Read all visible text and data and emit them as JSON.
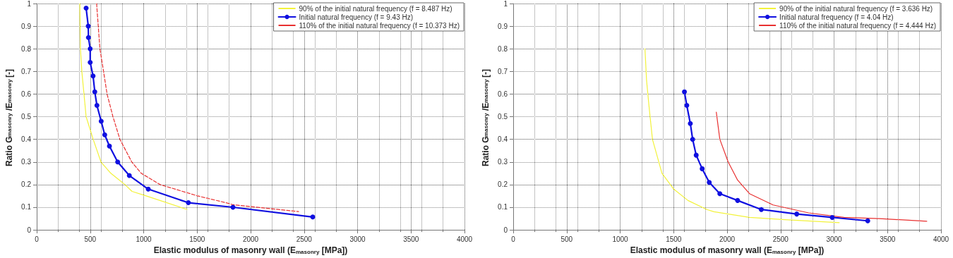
{
  "chart_data": [
    {
      "type": "line",
      "xlabel": "Elastic modulus of masonry wall (E$_{masonry}$ [MPa])",
      "ylabel": "Ratio G$_{masonry}$/E$_{masonry}$ [-]",
      "xlim": [
        0,
        4000
      ],
      "xticks": [
        0,
        500,
        1000,
        1500,
        2000,
        2500,
        3000,
        3500,
        4000
      ],
      "ylim": [
        0,
        1
      ],
      "yticks": [
        0,
        0.1,
        0.2,
        0.3,
        0.4,
        0.5,
        0.6,
        0.7,
        0.8,
        0.9,
        1
      ],
      "grid": true,
      "legend": "top right",
      "series": [
        {
          "name": "90% of the initial natural frequency (f = 8.487 Hz)",
          "color": "#f2f23a",
          "marker": "none",
          "line_style": "solid",
          "x": [
            403,
            409,
            422,
            462,
            528,
            601,
            693,
            825,
            891,
            1023,
            1406
          ],
          "values": [
            1.0,
            0.8,
            0.7,
            0.5,
            0.4,
            0.3,
            0.25,
            0.2,
            0.17,
            0.15,
            0.09
          ]
        },
        {
          "name": "Initial natural frequency (f = 9.43 Hz)",
          "color": "#1010e0",
          "marker": "circle",
          "line_style": "solid",
          "x": [
            462,
            482,
            484,
            500,
            500,
            527,
            543,
            563,
            603,
            636,
            680,
            757,
            866,
            1043,
            1418,
            1835,
            2581
          ],
          "values": [
            0.98,
            0.9,
            0.85,
            0.8,
            0.74,
            0.68,
            0.61,
            0.55,
            0.48,
            0.42,
            0.37,
            0.3,
            0.24,
            0.18,
            0.12,
            0.1,
            0.057
          ]
        },
        {
          "name": "110% of the initial natural frequency (f = 10.373 Hz)",
          "color": "#e83030",
          "marker": "none",
          "line_style": "dashed",
          "x": [
            560,
            591,
            625,
            658,
            713,
            778,
            889,
            977,
            1154,
            1505,
            1769,
            1835,
            2449
          ],
          "values": [
            1.0,
            0.8,
            0.7,
            0.6,
            0.5,
            0.4,
            0.3,
            0.25,
            0.2,
            0.15,
            0.12,
            0.111,
            0.081
          ]
        }
      ]
    },
    {
      "type": "line",
      "xlabel": "Elastic modulus of masonry wall (E$_{masonry}$ [MPa])",
      "ylabel": "Ratio G$_{masonry}$/E$_{masonry}$ [-]",
      "xlim": [
        0,
        4000
      ],
      "xticks": [
        0,
        500,
        1000,
        1500,
        2000,
        2500,
        3000,
        3500,
        4000
      ],
      "ylim": [
        0,
        1
      ],
      "yticks": [
        0,
        0.1,
        0.2,
        0.3,
        0.4,
        0.5,
        0.6,
        0.7,
        0.8,
        0.9,
        1
      ],
      "grid": true,
      "legend": "top right",
      "series": [
        {
          "name": "90% of the initial natural frequency (f = 3.636 Hz)",
          "color": "#f2f23a",
          "marker": "none",
          "line_style": "solid",
          "x": [
            1232,
            1247,
            1269,
            1302,
            1391,
            1501,
            1634,
            1811,
            1877,
            2209,
            2541,
            3049
          ],
          "values": [
            0.8,
            0.66,
            0.55,
            0.4,
            0.25,
            0.18,
            0.13,
            0.09,
            0.08,
            0.055,
            0.045,
            0.032
          ]
        },
        {
          "name": "Initial natural frequency (f = 4.04 Hz)",
          "color": "#1010e0",
          "marker": "circle",
          "line_style": "solid",
          "x": [
            1601,
            1623,
            1656,
            1678,
            1711,
            1767,
            1833,
            1932,
            2098,
            2320,
            2651,
            2983,
            3315
          ],
          "values": [
            0.61,
            0.55,
            0.47,
            0.4,
            0.33,
            0.27,
            0.21,
            0.16,
            0.13,
            0.09,
            0.07,
            0.055,
            0.04
          ]
        },
        {
          "name": "110% of the initial natural frequency (f = 4.444 Hz)",
          "color": "#e83030",
          "marker": "none",
          "line_style": "solid",
          "x": [
            1899,
            1932,
            2010,
            2098,
            2209,
            2430,
            2762,
            3093,
            3425,
            3867
          ],
          "values": [
            0.52,
            0.4,
            0.3,
            0.22,
            0.16,
            0.11,
            0.075,
            0.055,
            0.05,
            0.038
          ]
        }
      ]
    }
  ]
}
